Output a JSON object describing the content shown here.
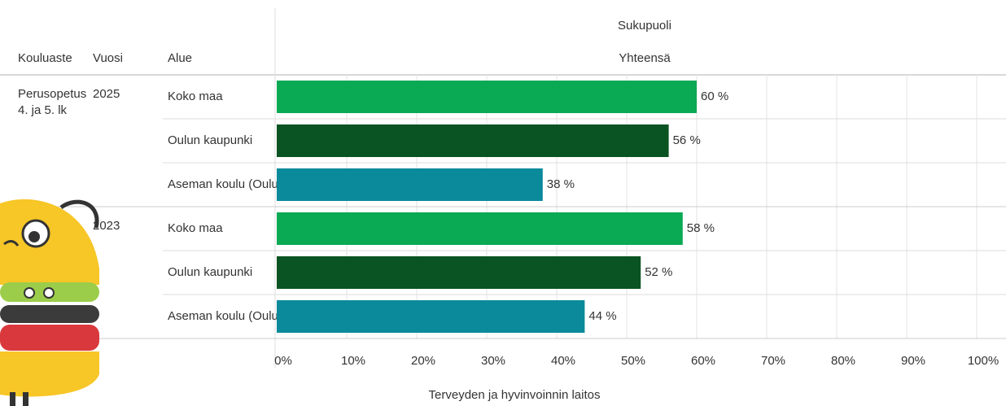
{
  "chart_data": {
    "type": "bar",
    "orientation": "horizontal",
    "column_headers": [
      "Kouluaste",
      "Vuosi",
      "Alue"
    ],
    "legend_title": "Sukupuoli",
    "series_name": "Yhteensä",
    "colors": [
      "#0aa954",
      "#0a5322",
      "#0a8a9b"
    ],
    "groups": [
      {
        "level": "Perusopetus 4. ja 5. lk",
        "year": "2025",
        "categories": [
          "Koko maa",
          "Oulun kaupunki",
          "Aseman koulu (Oulu)"
        ],
        "values": [
          60,
          56,
          38
        ],
        "value_labels": [
          "60 %",
          "56 %",
          "38 %"
        ]
      },
      {
        "year": "2023",
        "categories": [
          "Koko maa",
          "Oulun kaupunki",
          "Aseman koulu (Oulu)"
        ],
        "values": [
          58,
          52,
          44
        ],
        "value_labels": [
          "58 %",
          "52 %",
          "44 %"
        ]
      }
    ],
    "xlim": [
      0,
      100
    ],
    "xticks": [
      {
        "value": 0,
        "label": "0%"
      },
      {
        "value": 10,
        "label": "10%"
      },
      {
        "value": 20,
        "label": "20%"
      },
      {
        "value": 30,
        "label": "30%"
      },
      {
        "value": 40,
        "label": "40%"
      },
      {
        "value": 50,
        "label": "50%"
      },
      {
        "value": 60,
        "label": "60%"
      },
      {
        "value": 70,
        "label": "70%"
      },
      {
        "value": 80,
        "label": "80%"
      },
      {
        "value": 90,
        "label": "90%"
      },
      {
        "value": 100,
        "label": "100%"
      }
    ],
    "grid": true,
    "source": "Terveyden ja hyvinvoinnin laitos"
  }
}
